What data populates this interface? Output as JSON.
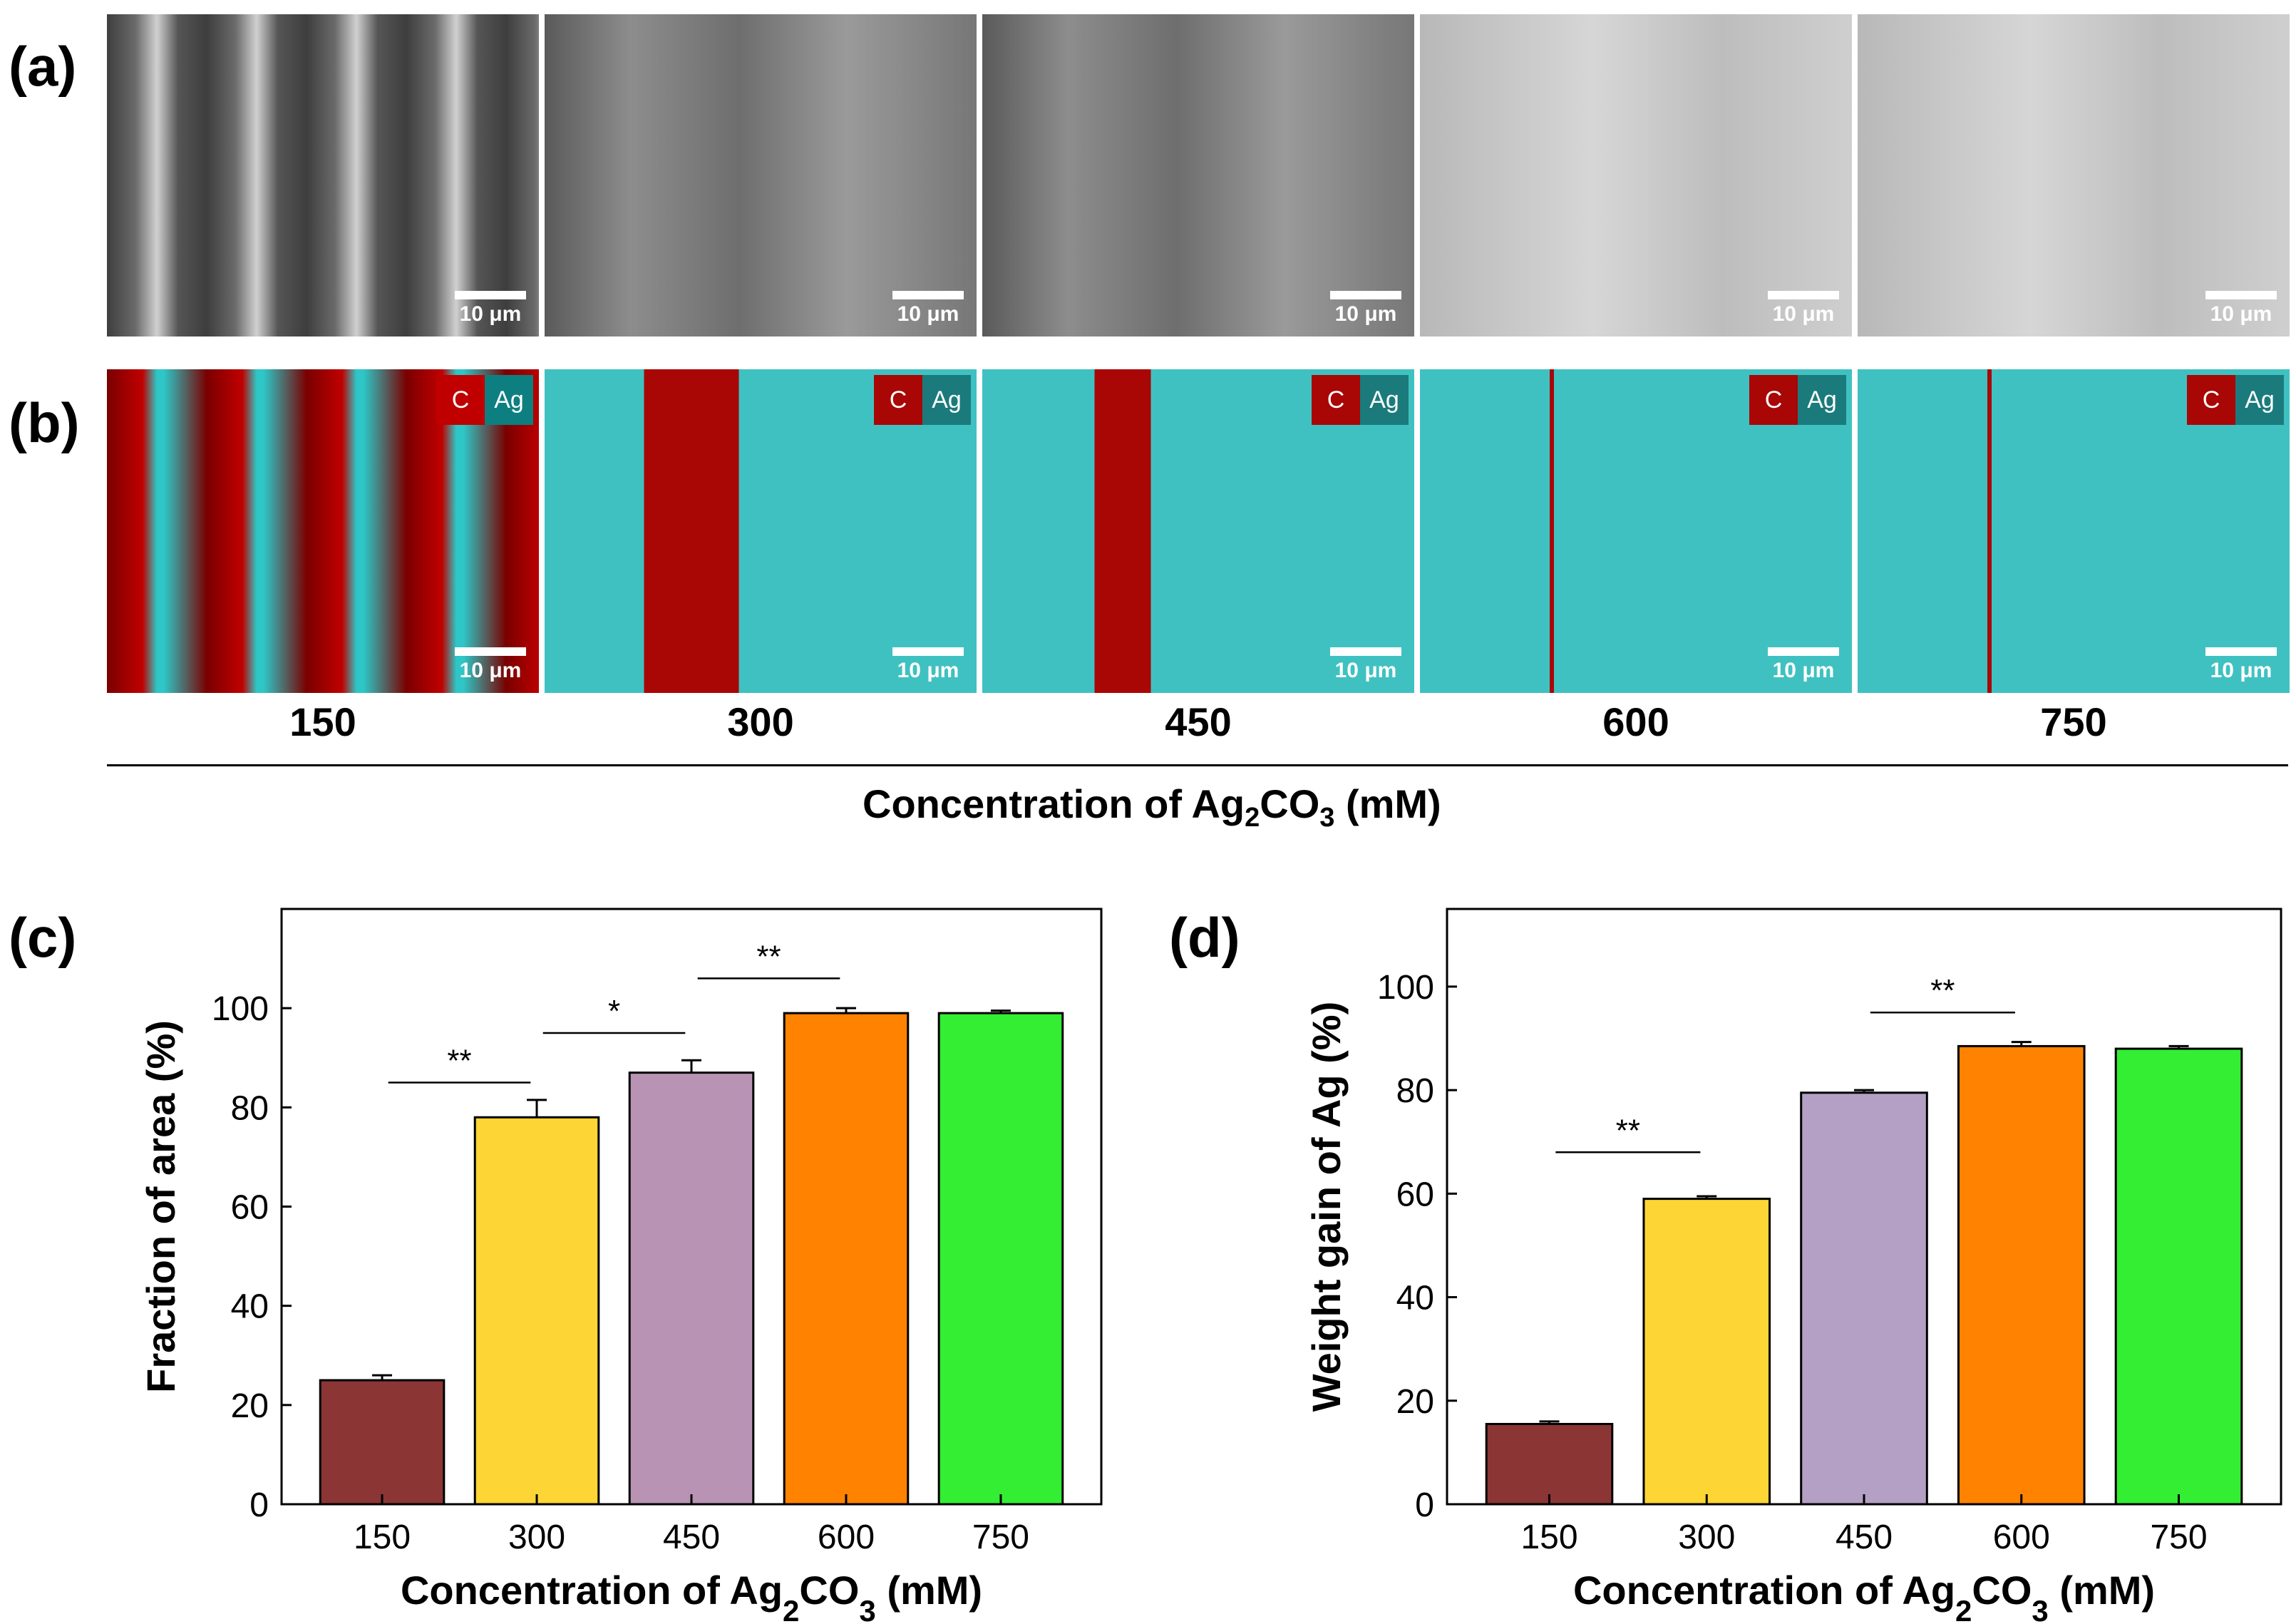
{
  "panels": {
    "a": "(a)",
    "b": "(b)",
    "c": "(c)",
    "d": "(d)"
  },
  "micrographs": {
    "concentrations": [
      "150",
      "300",
      "450",
      "600",
      "750"
    ],
    "scale_label": "10 μm",
    "legend_c": "C",
    "legend_ag": "Ag",
    "xlabel_main": "Concentration of Ag",
    "xlabel_sub2": "2",
    "xlabel_co": "CO",
    "xlabel_sub3": "3",
    "xlabel_unit": " (mM)",
    "colors": {
      "carbon": "#c00000",
      "silver": "#2ec6c6"
    }
  },
  "chart_data": [
    {
      "type": "bar",
      "panel": "(c)",
      "categories": [
        "150",
        "300",
        "450",
        "600",
        "750"
      ],
      "values": [
        25,
        78,
        87,
        99,
        99
      ],
      "errors": [
        1,
        3.5,
        2.5,
        1,
        0.5
      ],
      "colors": [
        "#8b3535",
        "#fdd535",
        "#b893b4",
        "#ff8200",
        "#33ee33"
      ],
      "ylabel": "Fraction of area (%)",
      "xlabel": "Concentration of Ag2CO3 (mM)",
      "ylim": [
        0,
        120
      ],
      "yticks": [
        0,
        20,
        40,
        60,
        80,
        100
      ],
      "significance": [
        {
          "from": 0,
          "to": 1,
          "y": 85,
          "label": "**"
        },
        {
          "from": 1,
          "to": 2,
          "y": 95,
          "label": "*"
        },
        {
          "from": 2,
          "to": 3,
          "y": 106,
          "label": "**"
        }
      ]
    },
    {
      "type": "bar",
      "panel": "(d)",
      "categories": [
        "150",
        "300",
        "450",
        "600",
        "750"
      ],
      "values": [
        15.5,
        59,
        79.5,
        88.5,
        88
      ],
      "errors": [
        0.5,
        0.5,
        0.5,
        0.8,
        0.5
      ],
      "colors": [
        "#8b3535",
        "#fdd535",
        "#b3a0c4",
        "#ff8200",
        "#33ee33"
      ],
      "ylabel": "Weight gain of Ag (%)",
      "xlabel": "Concentration of Ag2CO3 (mM)",
      "ylim": [
        0,
        115
      ],
      "yticks": [
        0,
        20,
        40,
        60,
        80,
        100
      ],
      "significance": [
        {
          "from": 0,
          "to": 1,
          "y": 68,
          "label": "**"
        },
        {
          "from": 2,
          "to": 3,
          "y": 95,
          "label": "**"
        }
      ]
    }
  ]
}
